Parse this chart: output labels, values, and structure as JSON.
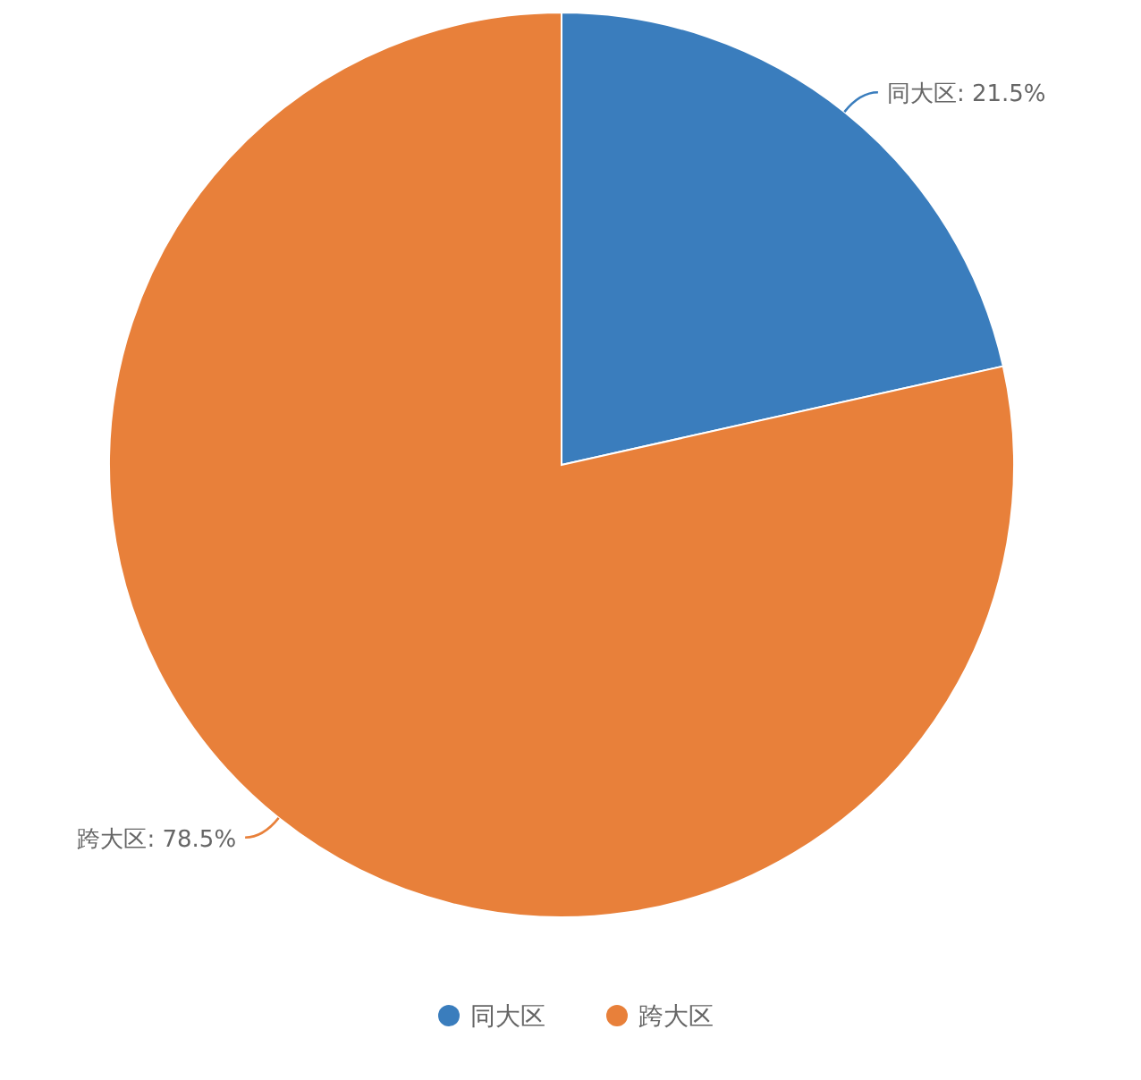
{
  "chart_data": {
    "type": "pie",
    "categories": [
      "同大区",
      "跨大区"
    ],
    "values": [
      21.5,
      78.5
    ],
    "colors": [
      "#3a7dbd",
      "#e8803a"
    ],
    "value_labels": [
      "同大区: 21.5%",
      "跨大区: 78.5%"
    ],
    "legend": "bottom"
  }
}
